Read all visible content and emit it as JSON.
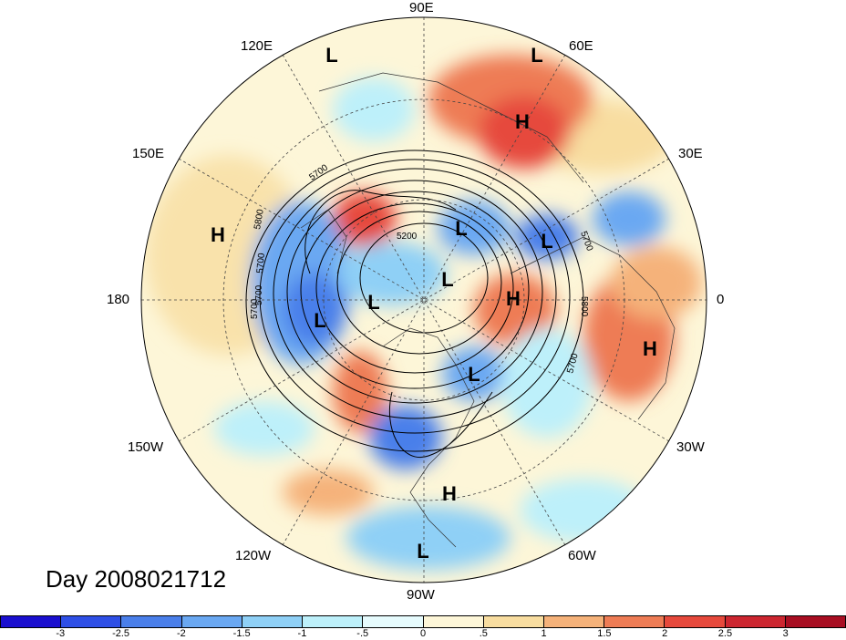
{
  "map": {
    "longitude_labels": [
      "90E",
      "60E",
      "30E",
      "0",
      "30W",
      "60W",
      "90W",
      "120W",
      "150W",
      "180",
      "150E",
      "120E"
    ],
    "contour_labels": [
      "5700",
      "5800",
      "5200",
      "5700",
      "5700",
      "5700",
      "5700",
      "5800",
      "5700"
    ],
    "pressure_centers": [
      {
        "type": "L"
      },
      {
        "type": "L"
      },
      {
        "type": "H"
      },
      {
        "type": "H"
      },
      {
        "type": "L"
      },
      {
        "type": "L"
      },
      {
        "type": "L"
      },
      {
        "type": "L"
      },
      {
        "type": "H"
      },
      {
        "type": "L"
      },
      {
        "type": "H"
      },
      {
        "type": "L"
      },
      {
        "type": "H"
      },
      {
        "type": "L"
      }
    ]
  },
  "title": "Day 2008021712",
  "colorbar": {
    "colors": [
      "#1a0fcf",
      "#2e4fe6",
      "#4a7fea",
      "#6aa8f2",
      "#8fd0f6",
      "#bdf0fa",
      "#e6fbfd",
      "#fdf6d8",
      "#f8dda0",
      "#f5b27a",
      "#ee7c55",
      "#e6493c",
      "#cc2630",
      "#a80e22"
    ],
    "tick_labels": [
      "-3",
      "-2.5",
      "-2",
      "-1.5",
      "-1",
      "-.5",
      "0",
      ".5",
      "1",
      "1.5",
      "2",
      "2.5",
      "3"
    ]
  }
}
